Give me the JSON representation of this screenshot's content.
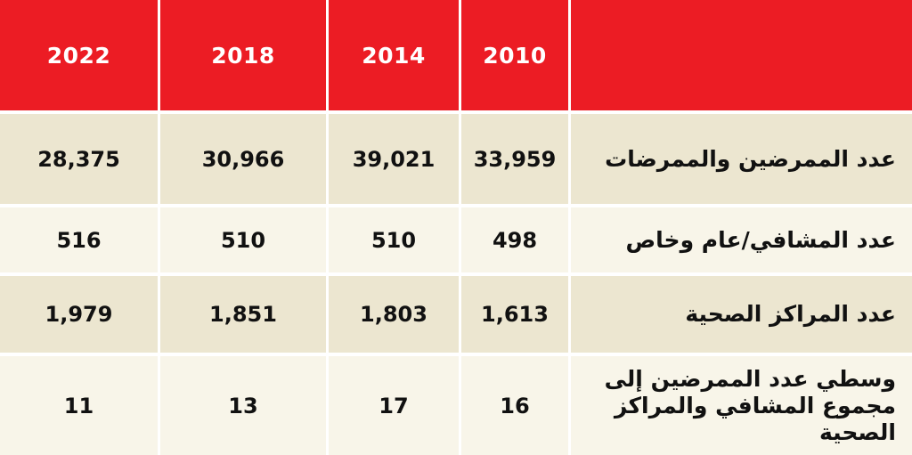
{
  "table": {
    "columns": [
      "2022",
      "2018",
      "2014",
      "2010",
      ""
    ],
    "rows": [
      {
        "label": "عدد الممرضين والممرضات",
        "values": [
          "28,375",
          "30,966",
          "39,021",
          "33,959"
        ]
      },
      {
        "label": "عدد المشافي/عام وخاص",
        "values": [
          "516",
          "510",
          "510",
          "498"
        ]
      },
      {
        "label": "عدد المراكز الصحية",
        "values": [
          "1,979",
          "1,851",
          "1,803",
          "1,613"
        ]
      },
      {
        "label": "وسطي عدد الممرضين إلى مجموع المشافي والمراكز الصحية",
        "values": [
          "11",
          "13",
          "17",
          "16"
        ]
      }
    ]
  },
  "colors": {
    "header_bg": "#ec1c24",
    "row_odd_bg": "#ece6d0",
    "row_even_bg": "#f8f5e9"
  }
}
